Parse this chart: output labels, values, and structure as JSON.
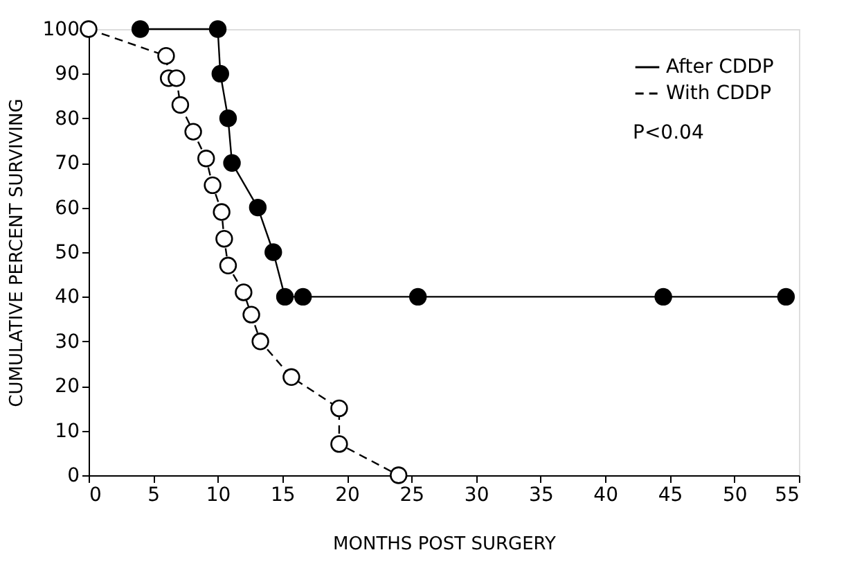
{
  "chart_data": {
    "type": "line",
    "xlabel": "MONTHS POST SURGERY",
    "ylabel": "CUMULATIVE PERCENT SURVIVING",
    "xlim": [
      0,
      55
    ],
    "xticks": [
      0,
      5,
      10,
      15,
      20,
      25,
      30,
      35,
      40,
      45,
      50,
      55
    ],
    "ylim": [
      0,
      100
    ],
    "yticks": [
      0,
      10,
      20,
      30,
      40,
      50,
      60,
      70,
      80,
      90,
      100
    ],
    "grid": false,
    "legend": "top right",
    "marker": "circle",
    "annotations": [
      "P<0.04"
    ],
    "series": [
      {
        "name": "After CDDP",
        "color": "#000000",
        "line_style": "solid",
        "x": [
          4,
          10,
          10.2,
          10.8,
          11.1,
          13.1,
          14.3,
          15.2,
          16.6,
          25.5,
          44.5,
          54
        ],
        "values": [
          100,
          100,
          90,
          80,
          70,
          60,
          50,
          40,
          40,
          40,
          40,
          40
        ]
      },
      {
        "name": "With CDDP",
        "color": "#000000",
        "line_style": "dashed",
        "x": [
          0,
          6,
          6.2,
          6.8,
          7.1,
          8.1,
          9.1,
          9.6,
          10.3,
          10.5,
          10.8,
          12,
          12.6,
          13.3,
          15.7,
          19.4,
          19.4,
          24
        ],
        "values": [
          100,
          94,
          89,
          89,
          83,
          77,
          71,
          65,
          59,
          53,
          47,
          41,
          36,
          30,
          22,
          15,
          7,
          0
        ]
      }
    ]
  }
}
